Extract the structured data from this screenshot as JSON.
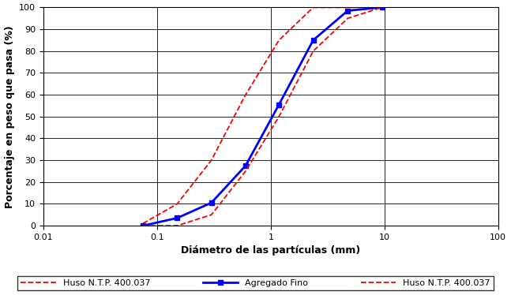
{
  "chart_data": {
    "type": "line",
    "xlabel": "Diámetro de las partículas (mm)",
    "ylabel": "Porcentaje en peso que pasa (%)",
    "log": "x",
    "grid": true,
    "legend": "lower center",
    "xlim": [
      0.01,
      100
    ],
    "xticks": [
      0.01,
      0.1,
      1,
      10,
      100
    ],
    "ylim": [
      0,
      100
    ],
    "yticks": [
      0,
      10,
      20,
      30,
      40,
      50,
      60,
      70,
      80,
      90,
      100
    ],
    "series": [
      {
        "name": "Huso N.T.P. 400.037",
        "color": "#ff0000",
        "line_style": "dashed",
        "marker": "none",
        "x": [
          0.075,
          0.15,
          0.3,
          0.6,
          1.18,
          2.36,
          4.75,
          9.5
        ],
        "values": [
          1,
          10,
          30,
          60,
          85,
          100,
          100,
          100
        ]
      },
      {
        "name": "Agregado Fino",
        "color": "#0000ff",
        "line_style": "solid",
        "marker": "square",
        "x": [
          0.075,
          0.15,
          0.3,
          0.6,
          1.18,
          2.36,
          4.75,
          9.5
        ],
        "values": [
          0,
          3.5,
          10.5,
          27.5,
          55.5,
          85,
          98.5,
          100
        ]
      },
      {
        "name": "Huso N.T.P. 400.037",
        "color": "#ff0000",
        "line_style": "dashed",
        "marker": "none",
        "x": [
          0.075,
          0.15,
          0.3,
          0.6,
          1.18,
          2.36,
          4.75,
          9.5
        ],
        "values": [
          0,
          0,
          5,
          25,
          50,
          80,
          95,
          100
        ]
      }
    ]
  }
}
